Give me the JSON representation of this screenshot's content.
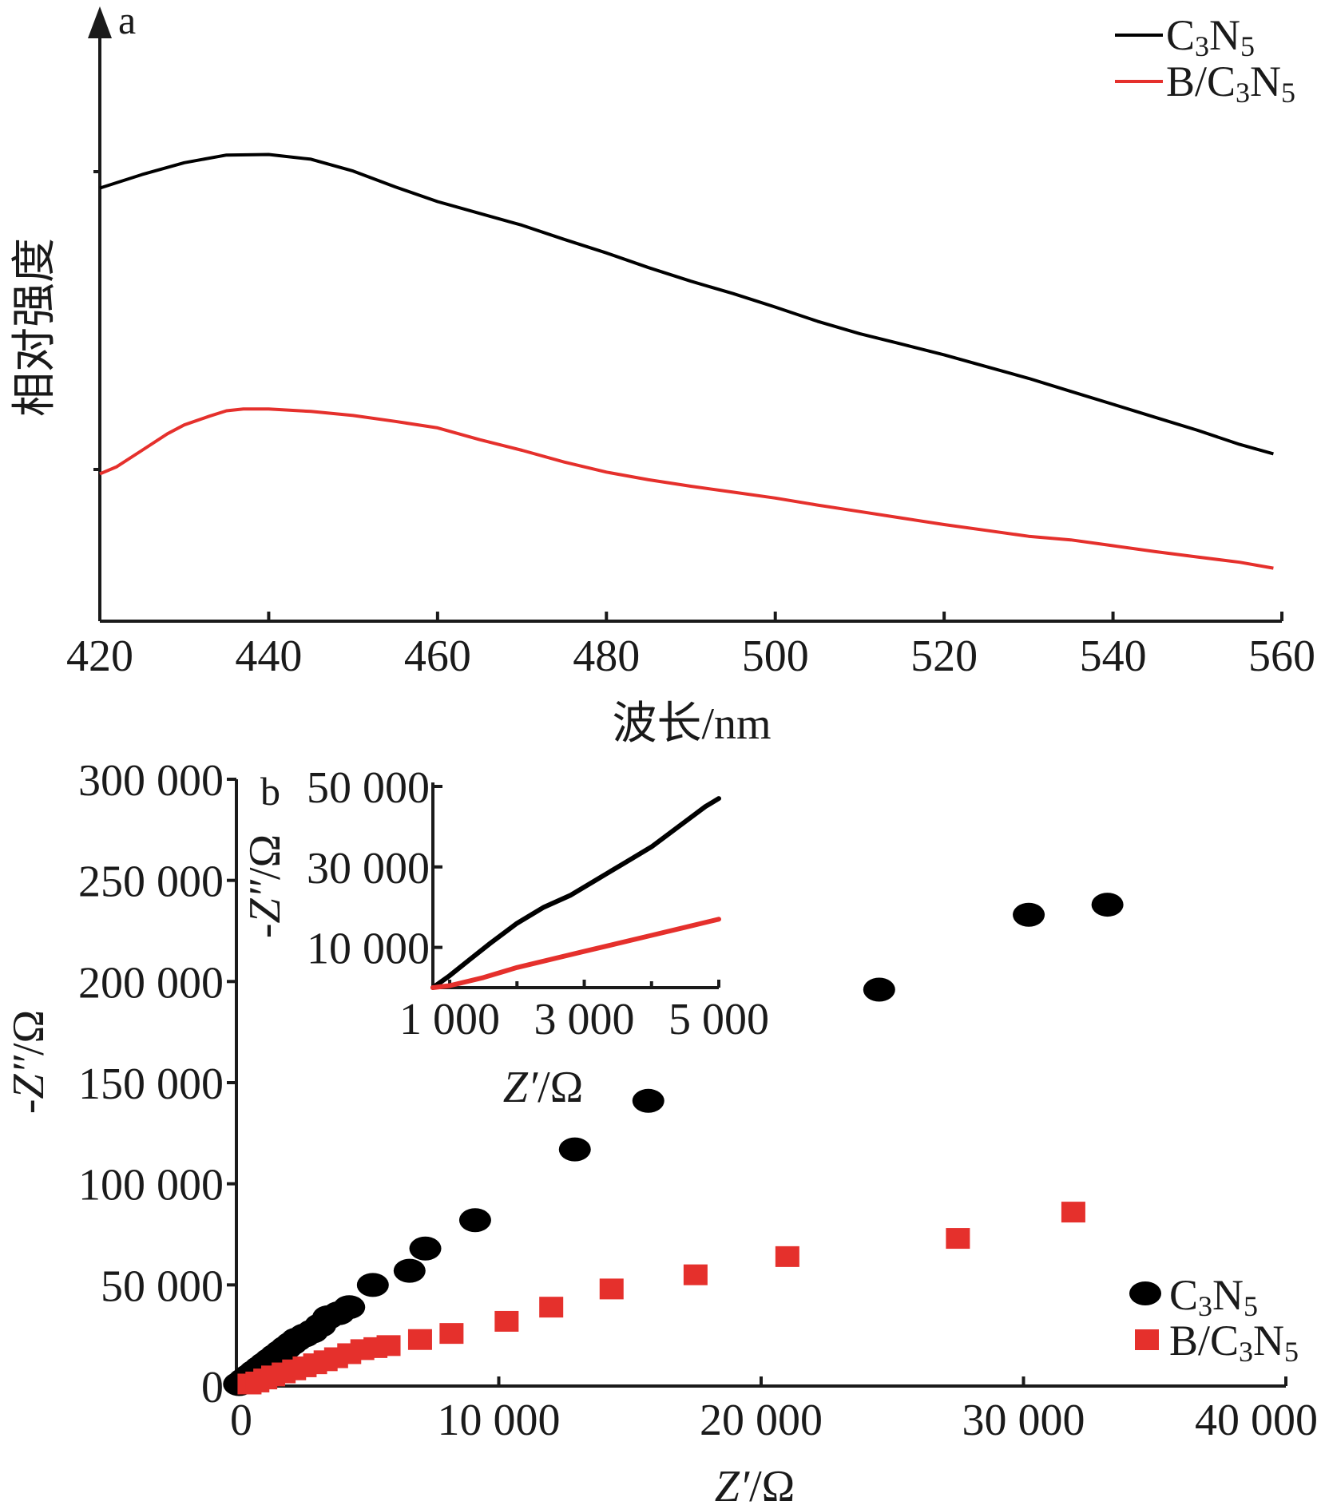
{
  "chart_data": [
    {
      "panel": "a",
      "type": "line",
      "xlabel": "波长/nm",
      "ylabel": "相对强度",
      "xlim": [
        420,
        560
      ],
      "xticks": [
        420,
        440,
        460,
        480,
        500,
        520,
        540,
        560
      ],
      "xtick_labels": [
        "420",
        "440",
        "460",
        "480",
        "500",
        "520",
        "540",
        "560"
      ],
      "legend": {
        "position": "top-right",
        "entries": [
          "C3N5",
          "B/C3N5"
        ]
      },
      "series": [
        {
          "name": "C3N5",
          "color": "#000000",
          "x": [
            420,
            425,
            430,
            435,
            440,
            445,
            450,
            455,
            460,
            465,
            470,
            475,
            480,
            485,
            490,
            495,
            500,
            505,
            510,
            515,
            520,
            525,
            530,
            535,
            540,
            545,
            550,
            555,
            559
          ],
          "y": [
            0.735,
            0.758,
            0.778,
            0.791,
            0.792,
            0.784,
            0.764,
            0.737,
            0.712,
            0.692,
            0.672,
            0.648,
            0.625,
            0.6,
            0.577,
            0.556,
            0.533,
            0.509,
            0.488,
            0.47,
            0.452,
            0.432,
            0.412,
            0.39,
            0.368,
            0.346,
            0.324,
            0.3,
            0.284
          ]
        },
        {
          "name": "B/C3N5",
          "color": "#e5302c",
          "x": [
            420,
            422,
            425,
            428,
            430,
            433,
            435,
            437,
            440,
            445,
            450,
            455,
            460,
            465,
            470,
            475,
            480,
            485,
            490,
            495,
            500,
            505,
            510,
            515,
            520,
            525,
            530,
            535,
            540,
            545,
            550,
            555,
            559
          ],
          "y": [
            0.25,
            0.262,
            0.29,
            0.318,
            0.333,
            0.348,
            0.357,
            0.36,
            0.36,
            0.356,
            0.349,
            0.339,
            0.328,
            0.308,
            0.29,
            0.27,
            0.253,
            0.24,
            0.229,
            0.219,
            0.209,
            0.197,
            0.186,
            0.175,
            0.164,
            0.154,
            0.144,
            0.138,
            0.128,
            0.118,
            0.109,
            0.1,
            0.09
          ]
        }
      ]
    },
    {
      "panel": "b",
      "type": "scatter",
      "xlabel": "Z'/Ω",
      "ylabel": "-Z''/Ω",
      "xlim": [
        0,
        40000
      ],
      "ylim": [
        0,
        300000
      ],
      "xticks": [
        0,
        10000,
        20000,
        30000,
        40000
      ],
      "xtick_labels": [
        "0",
        "10 000",
        "20 000",
        "30 000",
        "40 000"
      ],
      "yticks": [
        0,
        50000,
        100000,
        150000,
        200000,
        250000,
        300000
      ],
      "ytick_labels": [
        "0",
        "50 000",
        "100 000",
        "150 000",
        "200 000",
        "250 000",
        "300 000"
      ],
      "legend": {
        "position": "bottom-right",
        "entries": [
          "C3N5",
          "B/C3N5"
        ]
      },
      "series": [
        {
          "name": "C3N5",
          "color": "#000000",
          "marker": "circle",
          "x": [
            100,
            300,
            500,
            700,
            900,
            1100,
            1300,
            1500,
            1700,
            1900,
            2100,
            2300,
            2600,
            2900,
            3200,
            3500,
            3900,
            4300,
            5200,
            6600,
            7200,
            9100,
            12900,
            15700,
            24500,
            30200,
            33200
          ],
          "y": [
            1000,
            3000,
            5000,
            7000,
            9000,
            11000,
            13000,
            15000,
            17000,
            19000,
            21000,
            23000,
            25000,
            27000,
            30000,
            34000,
            36000,
            39000,
            50000,
            57000,
            68000,
            82000,
            117000,
            141000,
            196000,
            233000,
            238000
          ]
        },
        {
          "name": "B/C3N5",
          "color": "#e5302c",
          "marker": "square",
          "x": [
            500,
            800,
            1100,
            1400,
            1800,
            2200,
            2600,
            3000,
            3400,
            3800,
            4300,
            4800,
            5300,
            5800,
            7000,
            8200,
            10300,
            12000,
            14300,
            17500,
            21000,
            27500,
            31900
          ],
          "y": [
            1000,
            2000,
            3500,
            5000,
            6500,
            8000,
            9500,
            11000,
            12500,
            14000,
            16000,
            18000,
            19000,
            20000,
            23000,
            26000,
            32000,
            39000,
            48000,
            55000,
            64000,
            73000,
            86000
          ]
        }
      ],
      "inset": {
        "xlabel": "Z'/Ω",
        "ylabel": "-Z''/Ω",
        "xlim": [
          750,
          5000
        ],
        "ylim": [
          0,
          50000
        ],
        "xticks": [
          1000,
          3000,
          5000
        ],
        "xtick_labels": [
          "1 000",
          "3 000",
          "5 000"
        ],
        "yticks": [
          10000,
          30000,
          50000
        ],
        "ytick_labels": [
          "10 000",
          "30 000",
          "50 000"
        ],
        "series": [
          {
            "name": "C3N5",
            "color": "#000000",
            "x": [
              750,
              1000,
              1300,
              1600,
              2000,
              2400,
              2800,
              3200,
              3600,
              4000,
              4400,
              4800,
              5000
            ],
            "y": [
              0,
              3000,
              7000,
              11000,
              16000,
              20000,
              23000,
              27000,
              31000,
              35000,
              40000,
              45000,
              47000
            ]
          },
          {
            "name": "B/C3N5",
            "color": "#e5302c",
            "x": [
              750,
              1000,
              1500,
              2000,
              2500,
              3000,
              3500,
              4000,
              4500,
              5000
            ],
            "y": [
              0,
              500,
              2500,
              5000,
              7000,
              9000,
              11000,
              13000,
              15000,
              17000
            ]
          }
        ]
      }
    }
  ],
  "legend_a": {
    "items": [
      {
        "base": "C",
        "sub1": "3",
        "mid": "N",
        "sub2": "5",
        "color": "#000000"
      },
      {
        "base": "B/C",
        "sub1": "3",
        "mid": "N",
        "sub2": "5",
        "color": "#e5302c"
      }
    ]
  },
  "legend_b": {
    "items": [
      {
        "base": "C",
        "sub1": "3",
        "mid": "N",
        "sub2": "5",
        "color": "#000000"
      },
      {
        "base": "B/C",
        "sub1": "3",
        "mid": "N",
        "sub2": "5",
        "color": "#e5302c"
      }
    ]
  },
  "labels": {
    "panel_a": "a",
    "panel_b": "b",
    "a_xlabel": "波长/nm",
    "a_ylabel": "相对强度",
    "b_xlabel_italic": "Z′",
    "b_xlabel_rest": "/Ω",
    "b_ylabel_pre": "-",
    "b_ylabel_italic": "Z″",
    "b_ylabel_rest": "/Ω",
    "inset_xlabel_italic": "Z′",
    "inset_xlabel_rest": "/Ω",
    "inset_ylabel_pre": "-",
    "inset_ylabel_italic": "Z″",
    "inset_ylabel_rest": "/Ω"
  }
}
